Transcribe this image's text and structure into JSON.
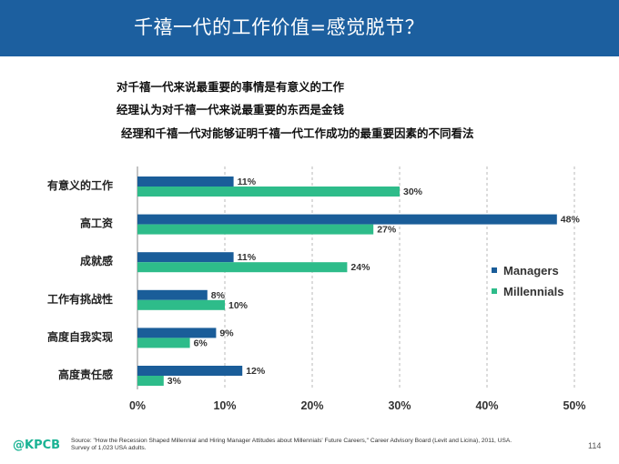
{
  "slide": {
    "title": "千禧一代的工作价值=感觉脱节？",
    "bullets": [
      "对千禧一代来说最重要的事情是有意义的工作",
      "经理认为对千禧一代来说最重要的东西是金钱",
      "经理和千禧一代对能够证明千禧一代工作成功的最重要因素的不同看法"
    ],
    "footer_logo": "@KPCB",
    "source_line1": "Source: \"How the Recession Shaped Millennial and Hiring Manager Attitudes about Millennials' Future Careers,\" Career Advisory Board (Levit and Licina), 2011, USA.",
    "source_line2": "Survey of 1,023 USA adults.",
    "page_number": "114"
  },
  "colors": {
    "header": "#1c5f9f",
    "managers": "#1a5d99",
    "millennials": "#2ebc8a",
    "grid": "#b8b8b8"
  },
  "chart_data": {
    "type": "bar",
    "orientation": "horizontal",
    "categories": [
      "有意义的工作",
      "高工资",
      "成就感",
      "工作有挑战性",
      "高度自我实现",
      "高度责任感"
    ],
    "series": [
      {
        "name": "Managers",
        "values": [
          11,
          48,
          11,
          8,
          9,
          12
        ],
        "labels": [
          "11%",
          "48%",
          "11%",
          "8%",
          "9%",
          "12%"
        ]
      },
      {
        "name": "Millennials",
        "values": [
          30,
          27,
          24,
          10,
          6,
          3
        ],
        "labels": [
          "30%",
          "27%",
          "24%",
          "10%",
          "6%",
          "3%"
        ]
      }
    ],
    "xlim": [
      0,
      50
    ],
    "xticks": [
      0,
      10,
      20,
      30,
      40,
      50
    ],
    "xtick_labels": [
      "0%",
      "10%",
      "20%",
      "30%",
      "40%",
      "50%"
    ],
    "grid": "vertical dashed",
    "legend_position": "right"
  }
}
